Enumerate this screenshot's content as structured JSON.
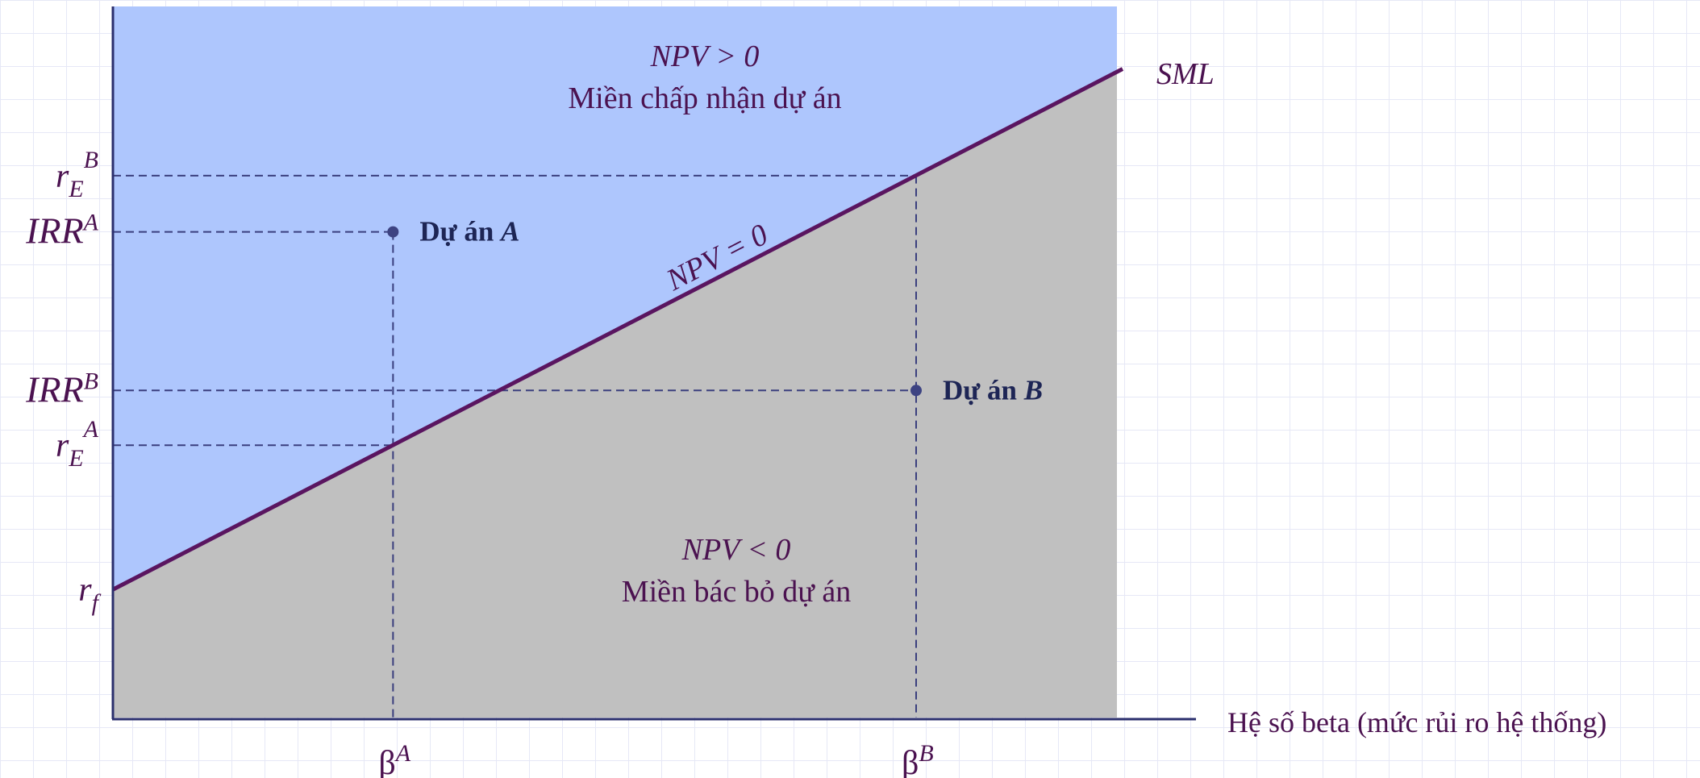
{
  "chart_data": {
    "type": "area",
    "title": "",
    "xlabel": "Hệ số beta (mức rủi ro hệ thống)",
    "ylabel": "",
    "xlim": [
      0,
      1.0
    ],
    "ylim": [
      0,
      1.0
    ],
    "grid": false,
    "series": [
      {
        "name": "SML",
        "x": [
          0,
          1.0
        ],
        "y": [
          0.18,
          0.908
        ]
      }
    ],
    "regions": {
      "above": {
        "title": "NPV > 0",
        "subtitle": "Miền chấp nhận dự án"
      },
      "line": {
        "label": "NPV = 0"
      },
      "below": {
        "title": "NPV < 0",
        "subtitle": "Miền bác bỏ dự án"
      }
    },
    "points": [
      {
        "name": "Dự án A",
        "x": 0.279,
        "y": 0.683
      },
      {
        "name": "Dự án B",
        "x": 0.8,
        "y": 0.46
      }
    ],
    "y_ticks": [
      {
        "value": 0.18,
        "label": "r",
        "sub": "f",
        "sup": ""
      },
      {
        "value": 0.383,
        "label": "r",
        "sub": "E",
        "sup": "A"
      },
      {
        "value": 0.46,
        "label": "IRR",
        "sub": "",
        "sup": "B"
      },
      {
        "value": 0.683,
        "label": "IRR",
        "sub": "",
        "sup": "A"
      },
      {
        "value": 0.762,
        "label": "r",
        "sub": "E",
        "sup": "B"
      }
    ],
    "x_ticks": [
      {
        "value": 0.279,
        "label": "β",
        "sup": "A"
      },
      {
        "value": 0.8,
        "label": "β",
        "sup": "B"
      }
    ],
    "point_labels": [
      {
        "prefix": "Dự án ",
        "letter": "A"
      },
      {
        "prefix": "Dự án ",
        "letter": "B"
      }
    ],
    "colors": {
      "accept_region": "#aec6fd",
      "reject_region": "#c0c0c0",
      "sml_line": "#5a1560",
      "axis": "#2b2f6d",
      "dashed": "#3a3f7e",
      "point": "#3d4382",
      "text_main": "#4b1250",
      "text_point": "#1d2555"
    }
  }
}
